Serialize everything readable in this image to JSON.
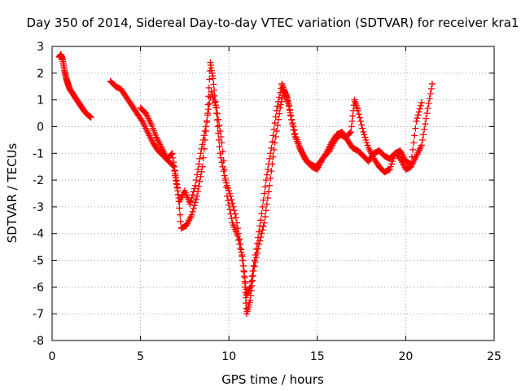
{
  "chart_data": {
    "type": "scatter",
    "title": "Day 350 of 2014, Sidereal Day-to-day VTEC variation (SDTVAR) for receiver kra1",
    "xlabel": "GPS time / hours",
    "ylabel": "SDTVAR / TECUs",
    "xlim": [
      0,
      25
    ],
    "ylim": [
      -8,
      3
    ],
    "xticks": [
      0,
      5,
      10,
      15,
      20,
      25
    ],
    "yticks": [
      -8,
      -7,
      -6,
      -5,
      -4,
      -3,
      -2,
      -1,
      0,
      1,
      2,
      3
    ],
    "grid": true,
    "marker": "+",
    "color": "#ff0000",
    "series": [
      {
        "name": "segment-1",
        "x": [
          0.4,
          0.5,
          0.6,
          0.7,
          0.8,
          0.9,
          1.0,
          1.2,
          1.4,
          1.6,
          1.8,
          2.0,
          2.2
        ],
        "y": [
          2.6,
          2.7,
          2.5,
          2.1,
          1.8,
          1.6,
          1.4,
          1.2,
          1.0,
          0.8,
          0.6,
          0.45,
          0.35
        ]
      },
      {
        "name": "segment-2",
        "x": [
          3.3,
          3.6,
          3.9,
          4.2,
          4.5,
          4.8,
          5.1,
          5.4,
          5.7,
          6.0,
          6.3,
          6.6,
          6.9,
          7.1,
          7.3,
          7.6,
          7.9,
          8.2,
          8.5,
          8.8,
          8.95,
          9.1,
          9.3,
          9.5,
          9.8,
          10.1,
          10.4,
          10.7,
          10.9,
          11.0,
          11.2,
          11.4,
          11.7,
          12.0,
          12.3,
          12.6,
          12.9,
          13.1,
          13.3,
          13.5,
          13.8,
          14.1,
          14.4,
          14.7,
          15.0,
          15.3,
          15.7,
          16.0,
          16.3,
          16.6,
          16.9,
          17.1,
          17.3,
          17.6,
          17.9,
          18.2,
          18.5,
          18.8,
          19.1,
          19.4,
          19.7,
          20.0,
          20.3,
          20.6,
          20.9,
          21.2,
          21.5
        ],
        "y": [
          1.7,
          1.5,
          1.4,
          1.1,
          0.8,
          0.5,
          0.2,
          -0.2,
          -0.6,
          -0.9,
          -1.1,
          -1.3,
          -1.5,
          -2.3,
          -3.8,
          -3.7,
          -3.3,
          -2.6,
          -1.5,
          0.5,
          2.4,
          1.8,
          0.5,
          -1.0,
          -2.0,
          -2.6,
          -3.4,
          -4.6,
          -5.8,
          -7.0,
          -6.5,
          -5.4,
          -4.4,
          -3.6,
          -2.2,
          -0.6,
          0.7,
          1.4,
          1.1,
          0.4,
          -0.4,
          -0.9,
          -1.3,
          -1.5,
          -1.6,
          -1.2,
          -0.9,
          -0.5,
          -0.3,
          -0.4,
          -0.2,
          1.0,
          0.6,
          -0.2,
          -0.8,
          -1.2,
          -1.5,
          -1.7,
          -1.6,
          -1.0,
          -1.2,
          -1.6,
          -1.5,
          -1.1,
          -0.7,
          0.5,
          1.6
        ]
      },
      {
        "name": "segment-3",
        "x": [
          5.0,
          5.3,
          5.6,
          5.9,
          6.2,
          6.5,
          6.8,
          7.0,
          7.2,
          7.5,
          7.8,
          8.1,
          8.4,
          8.7,
          9.0,
          9.3,
          9.6,
          9.9,
          10.2,
          10.5,
          10.8,
          11.0,
          11.2,
          11.5,
          11.8,
          12.1,
          12.4,
          12.7,
          13.0,
          13.2,
          13.4,
          13.7,
          14.0,
          14.3,
          14.6,
          14.9,
          15.2,
          15.5,
          15.8,
          16.1,
          16.4,
          16.7,
          17.0,
          17.3,
          17.6,
          17.9,
          18.2,
          18.5,
          18.8,
          19.1,
          19.4,
          19.7,
          20.0,
          20.3,
          20.6,
          20.9
        ],
        "y": [
          0.7,
          0.5,
          0.1,
          -0.4,
          -0.8,
          -1.2,
          -1.0,
          -2.0,
          -2.8,
          -2.4,
          -2.9,
          -2.2,
          -1.0,
          0.0,
          1.3,
          0.7,
          -0.6,
          -2.6,
          -3.6,
          -4.1,
          -5.0,
          -6.3,
          -6.0,
          -4.8,
          -3.5,
          -2.0,
          -0.8,
          0.6,
          1.6,
          1.2,
          0.8,
          -0.3,
          -0.8,
          -1.2,
          -1.4,
          -1.5,
          -1.3,
          -1.0,
          -0.6,
          -0.3,
          -0.2,
          -0.5,
          -0.8,
          -0.9,
          -1.1,
          -1.3,
          -1.0,
          -0.9,
          -1.1,
          -1.2,
          -1.0,
          -0.9,
          -1.3,
          -1.4,
          0.2,
          0.9
        ]
      }
    ]
  }
}
